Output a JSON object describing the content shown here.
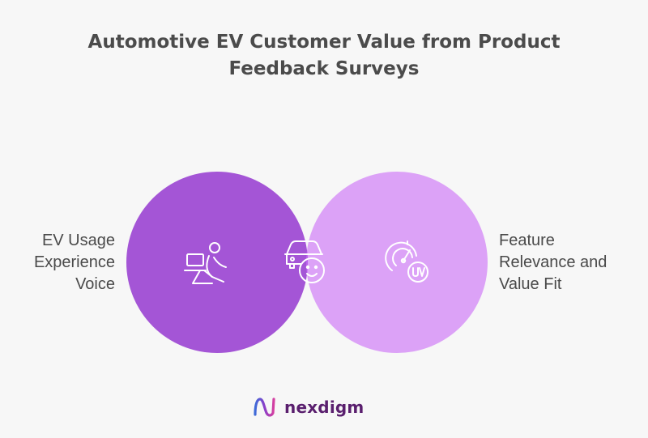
{
  "title": {
    "line1": "Automotive EV Customer Value from Product",
    "line2": "Feedback Surveys"
  },
  "left_set": {
    "label_lines": [
      "EV Usage",
      "Experience",
      "Voice"
    ],
    "color": "#a455d6",
    "icon": "person-with-laptop-icon"
  },
  "right_set": {
    "label_lines": [
      "Feature",
      "Relevance and",
      "Value Fit"
    ],
    "color": "#dca2f7",
    "icon": "uv-gauge-icon"
  },
  "overlap": {
    "color": "#bd62ee",
    "icon": "car-with-smiley-icon"
  },
  "logo": {
    "text": "nexdigm",
    "icon": "nexdigm-logo-icon"
  }
}
